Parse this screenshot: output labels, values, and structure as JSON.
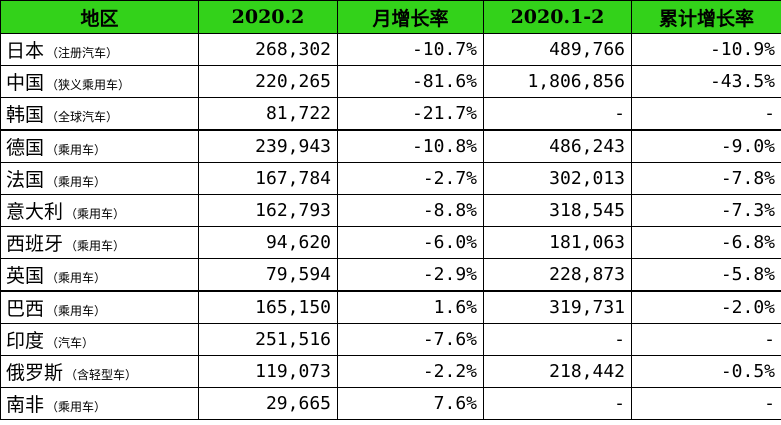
{
  "header": {
    "region": "地区",
    "month": "2020.2",
    "month_growth": "月增长率",
    "cumulative": "2020.1-2",
    "cumulative_growth": "累计增长率"
  },
  "rows": [
    {
      "name": "日本",
      "note": "（注册汽车）",
      "month": "268,302",
      "month_growth": "-10.7%",
      "cumulative": "489,766",
      "cumulative_growth": "-10.9%"
    },
    {
      "name": "中国",
      "note": "（狭义乘用车）",
      "month": "220,265",
      "month_growth": "-81.6%",
      "cumulative": "1,806,856",
      "cumulative_growth": "-43.5%"
    },
    {
      "name": "韩国",
      "note": "（全球汽车）",
      "month": "81,722",
      "month_growth": "-21.7%",
      "cumulative": "-",
      "cumulative_growth": "-"
    },
    {
      "name": "德国",
      "note": "（乘用车）",
      "month": "239,943",
      "month_growth": "-10.8%",
      "cumulative": "486,243",
      "cumulative_growth": "-9.0%"
    },
    {
      "name": "法国",
      "note": "（乘用车）",
      "month": "167,784",
      "month_growth": "-2.7%",
      "cumulative": "302,013",
      "cumulative_growth": "-7.8%"
    },
    {
      "name": "意大利",
      "note": "（乘用车）",
      "month": "162,793",
      "month_growth": "-8.8%",
      "cumulative": "318,545",
      "cumulative_growth": "-7.3%"
    },
    {
      "name": "西班牙",
      "note": "（乘用车）",
      "month": "94,620",
      "month_growth": "-6.0%",
      "cumulative": "181,063",
      "cumulative_growth": "-6.8%"
    },
    {
      "name": "英国",
      "note": "（乘用车）",
      "month": "79,594",
      "month_growth": "-2.9%",
      "cumulative": "228,873",
      "cumulative_growth": "-5.8%"
    },
    {
      "name": "巴西",
      "note": "（乘用车）",
      "month": "165,150",
      "month_growth": "1.6%",
      "cumulative": "319,731",
      "cumulative_growth": "-2.0%"
    },
    {
      "name": "印度",
      "note": "（汽车）",
      "month": "251,516",
      "month_growth": "-7.6%",
      "cumulative": "-",
      "cumulative_growth": "-"
    },
    {
      "name": "俄罗斯",
      "note": "（含轻型车）",
      "month": "119,073",
      "month_growth": "-2.2%",
      "cumulative": "218,442",
      "cumulative_growth": "-0.5%"
    },
    {
      "name": "南非",
      "note": "（乘用车）",
      "month": "29,665",
      "month_growth": "7.6%",
      "cumulative": "-",
      "cumulative_growth": "-"
    }
  ],
  "colors": {
    "header_bg": "#33d21a",
    "border": "#000000"
  }
}
